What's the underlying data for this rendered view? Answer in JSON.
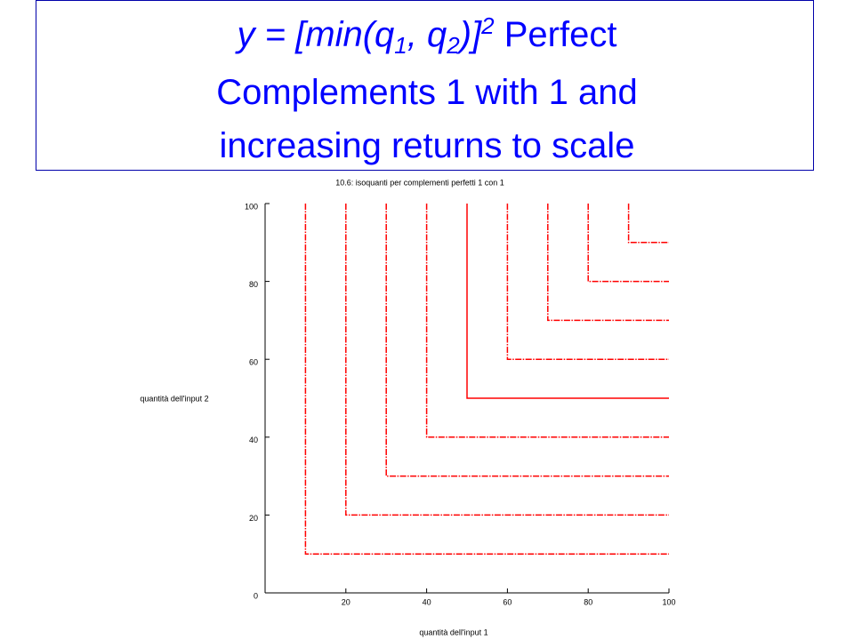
{
  "slide": {
    "title_line1": [
      "y = [min(q",
      "1",
      ", q",
      "2",
      ")]",
      "2",
      " Perfect"
    ],
    "title_line2": "Complements 1 with 1 and",
    "title_line3": "increasing returns to scale"
  },
  "chart_data": {
    "type": "line",
    "title": "10.6: isoquanti per complementi perfetti 1 con 1",
    "x_label": "quantità dell'input 1",
    "y_label": "quantità dell'input 2",
    "xlim": [
      0,
      100
    ],
    "ylim": [
      0,
      100
    ],
    "xticks": [
      20,
      40,
      60,
      80,
      100
    ],
    "yticks": [
      0,
      20,
      40,
      60,
      80,
      100
    ],
    "series": [
      {
        "color": "#ff0000",
        "line_style": "dashdot",
        "x": [
          10,
          10,
          100
        ],
        "values": [
          100,
          10,
          10
        ]
      },
      {
        "color": "#ff0000",
        "line_style": "dashdot",
        "x": [
          20,
          20,
          100
        ],
        "values": [
          100,
          20,
          20
        ]
      },
      {
        "color": "#ff0000",
        "line_style": "dashdot",
        "x": [
          30,
          30,
          100
        ],
        "values": [
          100,
          30,
          30
        ]
      },
      {
        "color": "#ff0000",
        "line_style": "dashdot",
        "x": [
          40,
          40,
          100
        ],
        "values": [
          100,
          40,
          40
        ]
      },
      {
        "color": "#ff0000",
        "line_style": "solid",
        "x": [
          50,
          50,
          100
        ],
        "values": [
          100,
          50,
          50
        ]
      },
      {
        "color": "#ff0000",
        "line_style": "dashdot",
        "x": [
          60,
          60,
          100
        ],
        "values": [
          100,
          60,
          60
        ]
      },
      {
        "color": "#ff0000",
        "line_style": "dashdot",
        "x": [
          70,
          70,
          100
        ],
        "values": [
          100,
          70,
          70
        ]
      },
      {
        "color": "#ff0000",
        "line_style": "dashdot",
        "x": [
          80,
          80,
          100
        ],
        "values": [
          100,
          80,
          80
        ]
      },
      {
        "color": "#ff0000",
        "line_style": "dashdot",
        "x": [
          90,
          90,
          100
        ],
        "values": [
          100,
          90,
          90
        ]
      }
    ]
  }
}
